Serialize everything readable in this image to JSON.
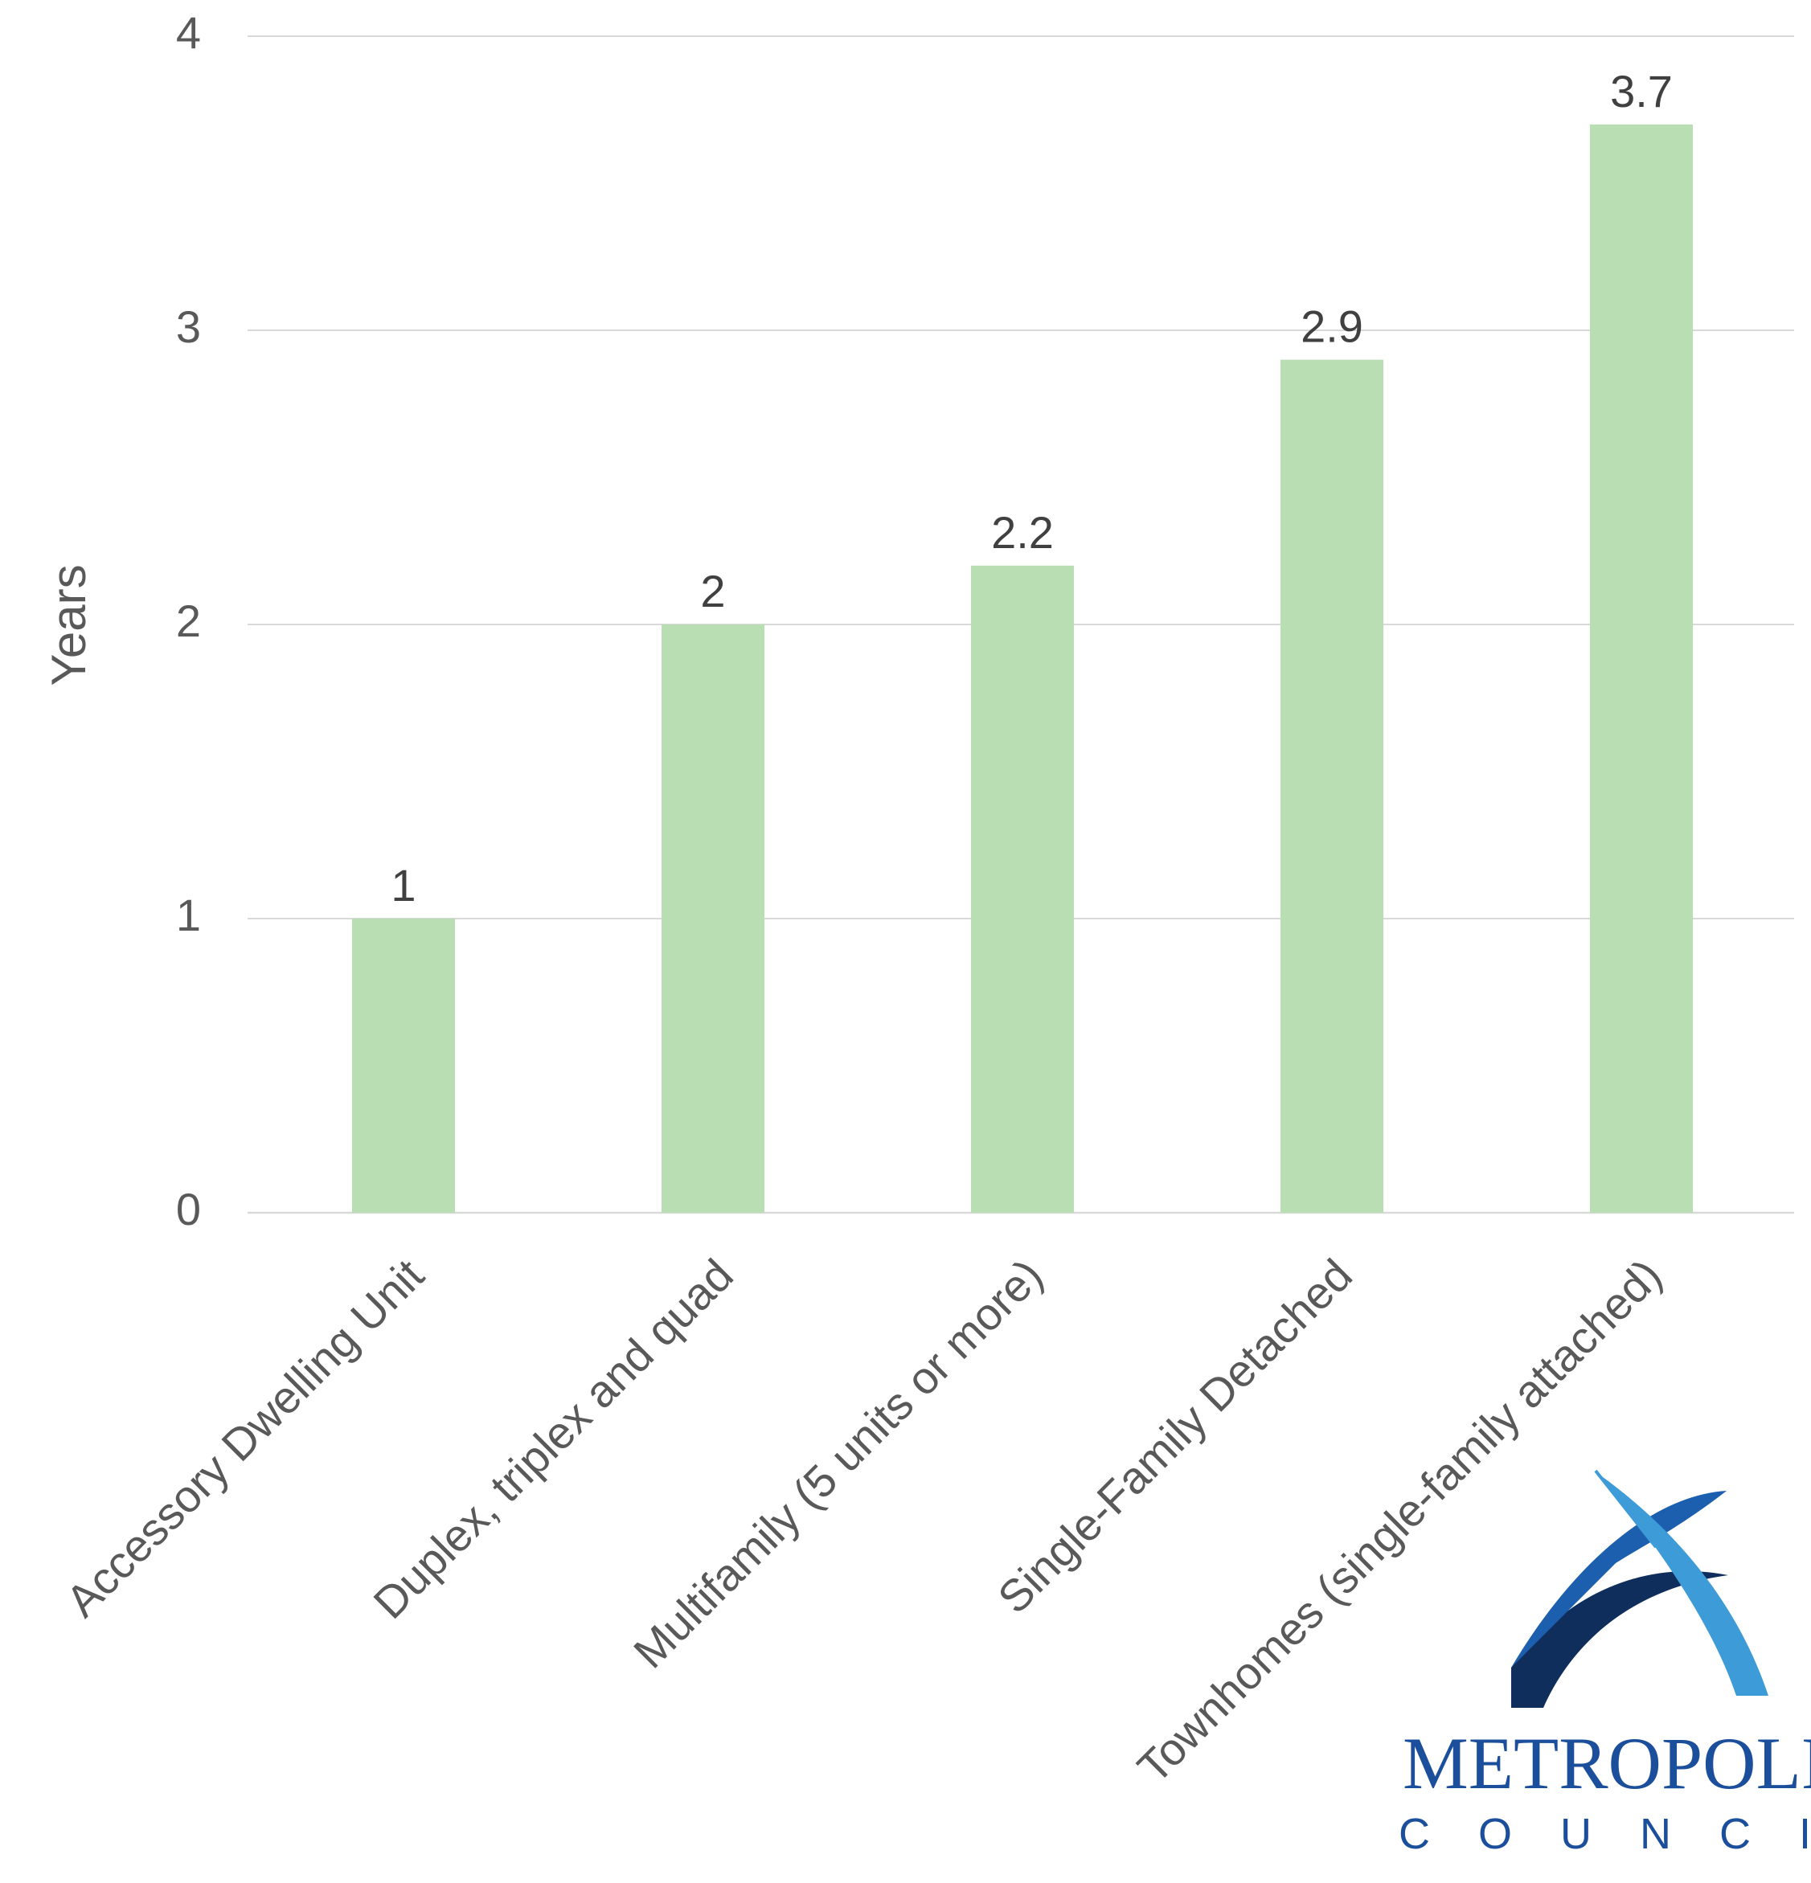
{
  "chart_data": {
    "type": "bar",
    "title": "",
    "xlabel": "",
    "ylabel": "Years",
    "ylim": [
      0,
      4
    ],
    "yticks": [
      0,
      1,
      2,
      3,
      4
    ],
    "grid": true,
    "legend": "none",
    "categories": [
      "Accessory Dwelling Unit",
      "Duplex, triplex and quad",
      "Multifamily (5 units or more)",
      "Single-Family Detached",
      "Townhomes (single-family attached)"
    ],
    "values": [
      1,
      2,
      2.2,
      2.9,
      3.7
    ],
    "data_labels": [
      "1",
      "2",
      "2.2",
      "2.9",
      "3.7"
    ],
    "colors": {
      "bar": "#b9deb3",
      "grid": "#d9d9d9",
      "axis": "#d9d9d9"
    }
  },
  "logo": {
    "name": "Metropolitan Council logo",
    "word": "METROPOLITAN",
    "sub": "COUNCIL",
    "colors": [
      "#0f2e5c",
      "#1b5fae",
      "#3d9bd8"
    ]
  }
}
